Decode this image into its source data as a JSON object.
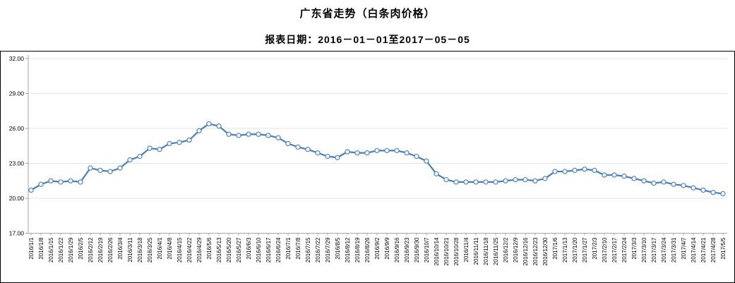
{
  "page": {
    "title": "广东省走势（白条肉价格）",
    "subtitle": "报表日期：2016－01－01至2017－05－05"
  },
  "chart_data": {
    "type": "line",
    "title": "广东省走势（白条肉价格）",
    "subtitle": "报表日期：2016－01－01至2017－05－05",
    "xlabel": "",
    "ylabel": "",
    "ylim": [
      17,
      32
    ],
    "yticks": [
      17,
      20,
      23,
      26,
      29,
      32
    ],
    "ytick_labels": [
      "17.00",
      "20.00",
      "23.00",
      "26.00",
      "29.00",
      "32.00"
    ],
    "grid": true,
    "legend_position": "none",
    "x": [
      "2016/1/1",
      "2016/1/8",
      "2016/1/15",
      "2016/1/22",
      "2016/1/29",
      "2016/2/5",
      "2016/2/12",
      "2016/2/19",
      "2016/2/26",
      "2016/3/4",
      "2016/3/11",
      "2016/3/18",
      "2016/3/25",
      "2016/4/1",
      "2016/4/8",
      "2016/4/15",
      "2016/4/22",
      "2016/4/29",
      "2016/5/6",
      "2016/5/13",
      "2016/5/20",
      "2016/5/27",
      "2016/6/3",
      "2016/6/10",
      "2016/6/17",
      "2016/6/24",
      "2016/7/1",
      "2016/7/8",
      "2016/7/15",
      "2016/7/22",
      "2016/7/29",
      "2016/8/5",
      "2016/8/12",
      "2016/8/19",
      "2016/8/26",
      "2016/9/2",
      "2016/9/9",
      "2016/9/16",
      "2016/9/23",
      "2016/9/30",
      "2016/10/7",
      "2016/10/14",
      "2016/10/21",
      "2016/10/28",
      "2016/11/4",
      "2016/11/11",
      "2016/11/18",
      "2016/11/25",
      "2016/12/2",
      "2016/12/9",
      "2016/12/16",
      "2016/12/23",
      "2016/12/30",
      "2017/1/6",
      "2017/1/13",
      "2017/1/20",
      "2017/1/27",
      "2017/2/3",
      "2017/2/10",
      "2017/2/17",
      "2017/2/24",
      "2017/3/3",
      "2017/3/10",
      "2017/3/17",
      "2017/3/24",
      "2017/3/31",
      "2017/4/7",
      "2017/4/14",
      "2017/4/21",
      "2017/4/28",
      "2017/5/5"
    ],
    "series": [
      {
        "name": "白条肉价格",
        "values": [
          20.7,
          21.2,
          21.5,
          21.4,
          21.5,
          21.4,
          22.6,
          22.4,
          22.3,
          22.6,
          23.3,
          23.6,
          24.3,
          24.2,
          24.7,
          24.8,
          25.0,
          25.8,
          26.4,
          26.2,
          25.5,
          25.4,
          25.5,
          25.5,
          25.4,
          25.2,
          24.7,
          24.4,
          24.2,
          23.9,
          23.6,
          23.5,
          24.0,
          23.9,
          23.9,
          24.1,
          24.1,
          24.1,
          23.9,
          23.6,
          23.2,
          22.1,
          21.6,
          21.4,
          21.4,
          21.4,
          21.4,
          21.4,
          21.5,
          21.6,
          21.6,
          21.5,
          21.7,
          22.3,
          22.3,
          22.4,
          22.5,
          22.4,
          22.0,
          22.0,
          21.9,
          21.7,
          21.5,
          21.3,
          21.4,
          21.2,
          21.1,
          20.9,
          20.7,
          20.5,
          20.4
        ]
      }
    ],
    "colors": {
      "line": "#4a7ebb",
      "marker_fill": "#f0f6fc",
      "gridline": "#dce6f1",
      "axis": "#a6a6a6",
      "label_text": "#000000"
    }
  }
}
